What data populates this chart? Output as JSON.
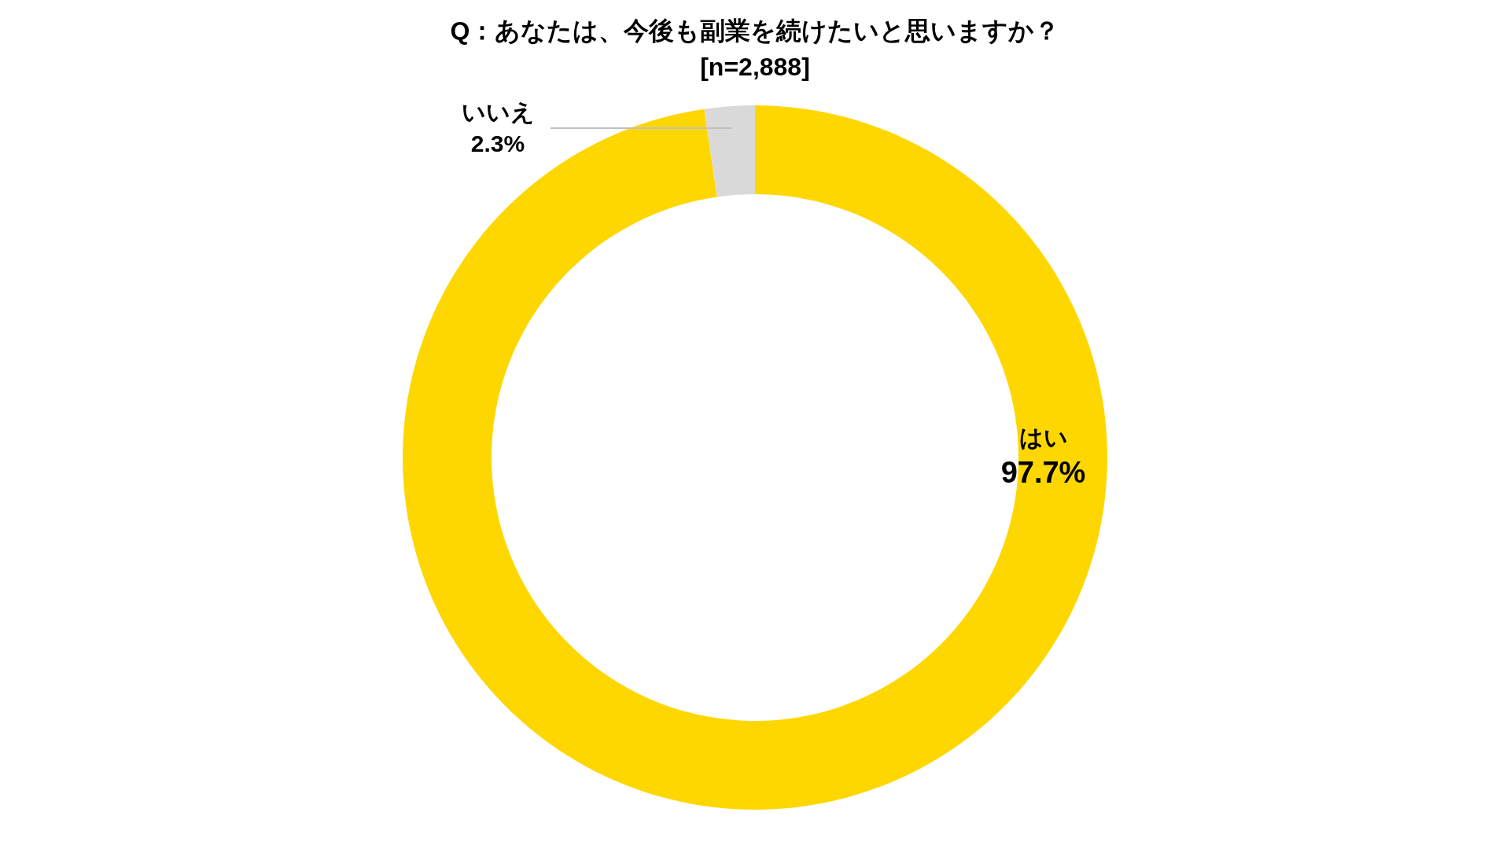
{
  "chart_data": {
    "type": "donut",
    "title": "Q：あなたは、今後も副業を続けたいと思いますか？",
    "subtitle": "[n=2,888]",
    "categories": [
      "はい",
      "いいえ"
    ],
    "values": [
      97.7,
      2.3
    ],
    "colors": [
      "#ffd700",
      "#d9d9d9"
    ],
    "value_labels": [
      "97.7%",
      "2.3%"
    ]
  }
}
